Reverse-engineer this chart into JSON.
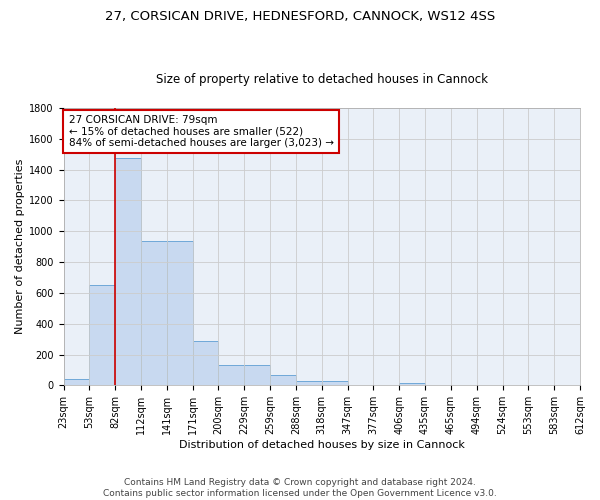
{
  "title_line1": "27, CORSICAN DRIVE, HEDNESFORD, CANNOCK, WS12 4SS",
  "title_line2": "Size of property relative to detached houses in Cannock",
  "xlabel": "Distribution of detached houses by size in Cannock",
  "ylabel": "Number of detached properties",
  "bar_values": [
    40,
    650,
    1475,
    940,
    940,
    290,
    130,
    130,
    65,
    25,
    25,
    0,
    0,
    15,
    0,
    0,
    0,
    0,
    0,
    0
  ],
  "categories": [
    "23sqm",
    "53sqm",
    "82sqm",
    "112sqm",
    "141sqm",
    "171sqm",
    "200sqm",
    "229sqm",
    "259sqm",
    "288sqm",
    "318sqm",
    "347sqm",
    "377sqm",
    "406sqm",
    "435sqm",
    "465sqm",
    "494sqm",
    "524sqm",
    "553sqm",
    "583sqm",
    "612sqm"
  ],
  "bar_color": "#c8d9f0",
  "bar_edge_color": "#6fa8d8",
  "vline_x_index": 2,
  "vline_color": "#cc0000",
  "annotation_text": "27 CORSICAN DRIVE: 79sqm\n← 15% of detached houses are smaller (522)\n84% of semi-detached houses are larger (3,023) →",
  "annotation_box_color": "white",
  "annotation_box_edge_color": "#cc0000",
  "ylim": [
    0,
    1800
  ],
  "yticks": [
    0,
    200,
    400,
    600,
    800,
    1000,
    1200,
    1400,
    1600,
    1800
  ],
  "grid_color": "#cccccc",
  "background_color": "white",
  "axes_bg_color": "#eaf0f8",
  "footer_text": "Contains HM Land Registry data © Crown copyright and database right 2024.\nContains public sector information licensed under the Open Government Licence v3.0.",
  "title_fontsize": 9.5,
  "subtitle_fontsize": 8.5,
  "axis_label_fontsize": 8,
  "tick_fontsize": 7,
  "annotation_fontsize": 7.5,
  "footer_fontsize": 6.5
}
